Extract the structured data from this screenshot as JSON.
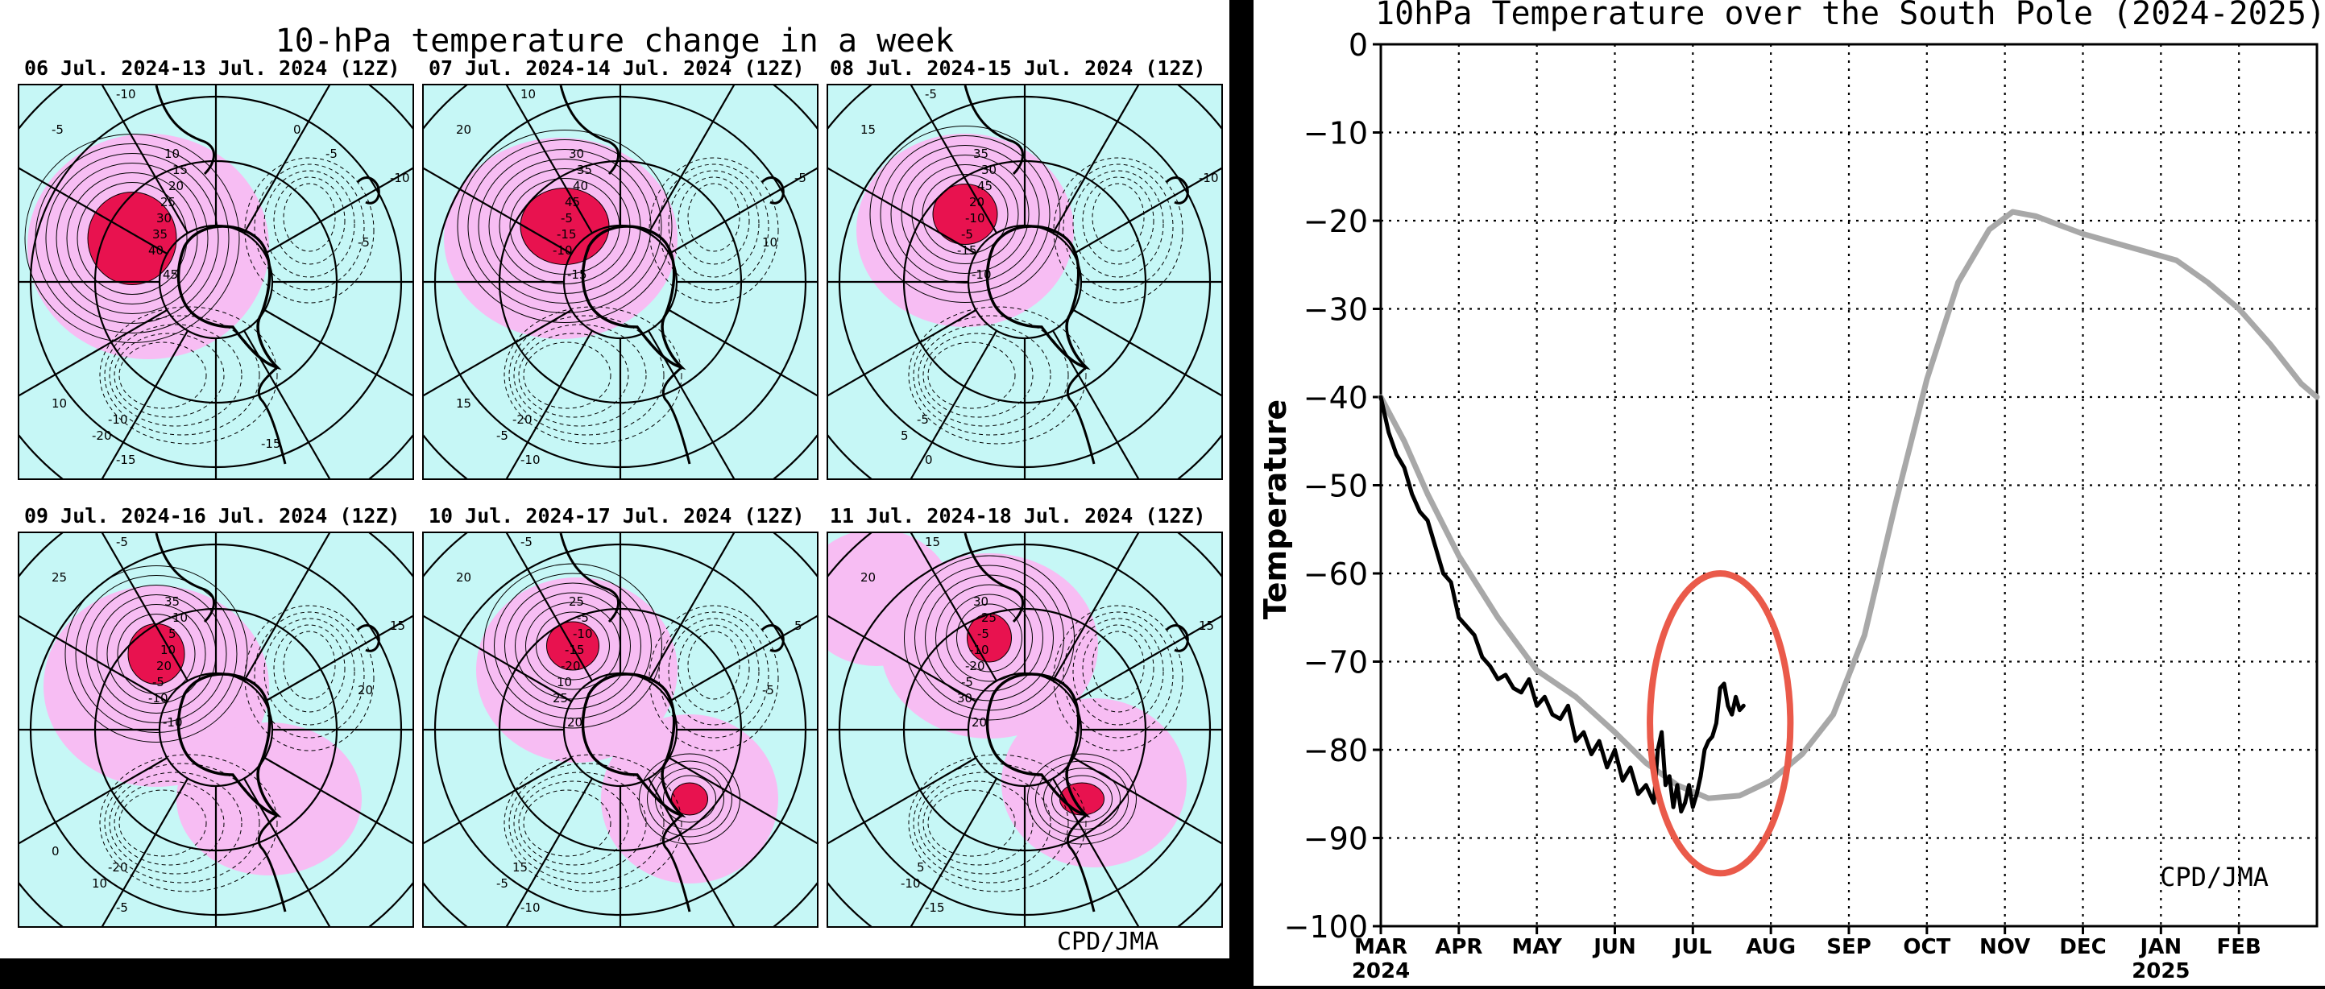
{
  "left_figure": {
    "title": "10-hPa temperature change in a week",
    "credit": "CPD/JMA",
    "colors": {
      "background_negative": "#c6f7f6",
      "positive": "#f7bdf3",
      "strong_positive": "#e8124f"
    },
    "panels": [
      {
        "title": "06 Jul. 2024-13 Jul. 2024 (12Z)",
        "labels": [
          "-10",
          "-5",
          "10",
          "15",
          "20",
          "25",
          "30",
          "35",
          "40",
          "45",
          "-10",
          "-15",
          "-20",
          "-10",
          "-5",
          "10",
          "-5",
          "-15",
          "0"
        ]
      },
      {
        "title": "07 Jul. 2024-14 Jul. 2024 (12Z)",
        "labels": [
          "10",
          "20",
          "30",
          "35",
          "40",
          "45",
          "-5",
          "-15",
          "-10",
          "-15",
          "-20",
          "-10",
          "-5",
          "-5",
          "10",
          "15"
        ]
      },
      {
        "title": "08 Jul. 2024-15 Jul. 2024 (12Z)",
        "labels": [
          "-5",
          "15",
          "35",
          "30",
          "45",
          "20",
          "-10",
          "-5",
          "-15",
          "-10",
          "-5",
          "0",
          "5",
          "-10"
        ]
      },
      {
        "title": "09 Jul. 2024-16 Jul. 2024 (12Z)",
        "labels": [
          "-5",
          "25",
          "35",
          "10",
          "5",
          "10",
          "20",
          "-5",
          "-10",
          "-10",
          "-20",
          "-5",
          "10",
          "15",
          "20",
          "0"
        ]
      },
      {
        "title": "10 Jul. 2024-17 Jul. 2024 (12Z)",
        "labels": [
          "-5",
          "20",
          "25",
          "-5",
          "-10",
          "-15",
          "-20",
          "10",
          "25",
          "20",
          "15",
          "-10",
          "-5",
          "5",
          "-5"
        ]
      },
      {
        "title": "11 Jul. 2024-18 Jul. 2024 (12Z)",
        "labels": [
          "15",
          "20",
          "30",
          "25",
          "-5",
          "-10",
          "-20",
          "-5",
          "30",
          "20",
          "5",
          "-15",
          "-10",
          "15"
        ]
      }
    ]
  },
  "chart_data": {
    "type": "line",
    "title": "10hPa Temperature over the South Pole (2024-2025)",
    "ylabel": "Temperature",
    "xlabel": "",
    "ylim": [
      -100,
      0
    ],
    "yticks": [
      0,
      -10,
      -20,
      -30,
      -40,
      -50,
      -60,
      -70,
      -80,
      -90,
      -100
    ],
    "xticks": [
      {
        "label": "MAR",
        "sub": "2024",
        "month_index": 0
      },
      {
        "label": "APR",
        "sub": "",
        "month_index": 1
      },
      {
        "label": "MAY",
        "sub": "",
        "month_index": 2
      },
      {
        "label": "JUN",
        "sub": "",
        "month_index": 3
      },
      {
        "label": "JUL",
        "sub": "",
        "month_index": 4
      },
      {
        "label": "AUG",
        "sub": "",
        "month_index": 5
      },
      {
        "label": "SEP",
        "sub": "",
        "month_index": 6
      },
      {
        "label": "OCT",
        "sub": "",
        "month_index": 7
      },
      {
        "label": "NOV",
        "sub": "",
        "month_index": 8
      },
      {
        "label": "DEC",
        "sub": "",
        "month_index": 9
      },
      {
        "label": "JAN",
        "sub": "2025",
        "month_index": 10
      },
      {
        "label": "FEB",
        "sub": "",
        "month_index": 11
      }
    ],
    "xlim_months": [
      0,
      12
    ],
    "grid": true,
    "credit": "CPD/JMA",
    "series": [
      {
        "color": "#a8a8a8",
        "x_months": [
          0,
          0.3,
          0.6,
          1.0,
          1.5,
          2.0,
          2.5,
          3.0,
          3.4,
          3.8,
          4.2,
          4.6,
          5.0,
          5.4,
          5.8,
          6.2,
          6.6,
          7.0,
          7.4,
          7.8,
          8.1,
          8.4,
          8.7,
          9.0,
          9.4,
          9.8,
          10.2,
          10.6,
          11.0,
          11.4,
          11.8,
          12.0
        ],
        "values": [
          -40,
          -45,
          -51,
          -58,
          -65,
          -71,
          -74,
          -78,
          -81.5,
          -84,
          -85.5,
          -85.2,
          -83.5,
          -80.5,
          -76,
          -67,
          -52,
          -38,
          -27,
          -21,
          -19,
          -19.5,
          -20.5,
          -21.5,
          -22.5,
          -23.5,
          -24.5,
          -27,
          -30,
          -34,
          -38.5,
          -40
        ]
      },
      {
        "color": "#000000",
        "x_months": [
          0,
          0.1,
          0.2,
          0.3,
          0.4,
          0.5,
          0.6,
          0.7,
          0.8,
          0.9,
          1.0,
          1.1,
          1.2,
          1.3,
          1.4,
          1.5,
          1.6,
          1.7,
          1.8,
          1.9,
          2.0,
          2.1,
          2.2,
          2.3,
          2.4,
          2.5,
          2.6,
          2.7,
          2.8,
          2.9,
          3.0,
          3.1,
          3.2,
          3.3,
          3.4,
          3.5,
          3.55,
          3.6,
          3.65,
          3.7,
          3.75,
          3.8,
          3.85,
          3.9,
          3.95,
          4.0,
          4.05,
          4.1,
          4.15,
          4.2,
          4.25,
          4.3,
          4.35,
          4.4,
          4.45,
          4.5,
          4.55,
          4.6,
          4.65
        ],
        "values": [
          -40,
          -44,
          -46.5,
          -48,
          -51,
          -53,
          -54,
          -57,
          -60,
          -61,
          -65,
          -66,
          -67,
          -69.5,
          -70.5,
          -72,
          -71.5,
          -73,
          -73.5,
          -72,
          -75,
          -74,
          -76,
          -76.5,
          -75,
          -79,
          -78,
          -80.5,
          -79,
          -82,
          -80,
          -83.5,
          -82,
          -85,
          -84,
          -86,
          -80,
          -78,
          -84,
          -83,
          -86.5,
          -84,
          -87,
          -86,
          -84,
          -86.5,
          -85,
          -83,
          -80,
          -79,
          -78.5,
          -77,
          -73,
          -72.5,
          -75,
          -76,
          -74,
          -75.5,
          -75
        ]
      }
    ],
    "annotation": {
      "shape": "ellipse",
      "color": "#ea5a4a",
      "center_month": 4.35,
      "center_value": -77,
      "rx_months": 0.9,
      "ry_value": 17
    }
  }
}
